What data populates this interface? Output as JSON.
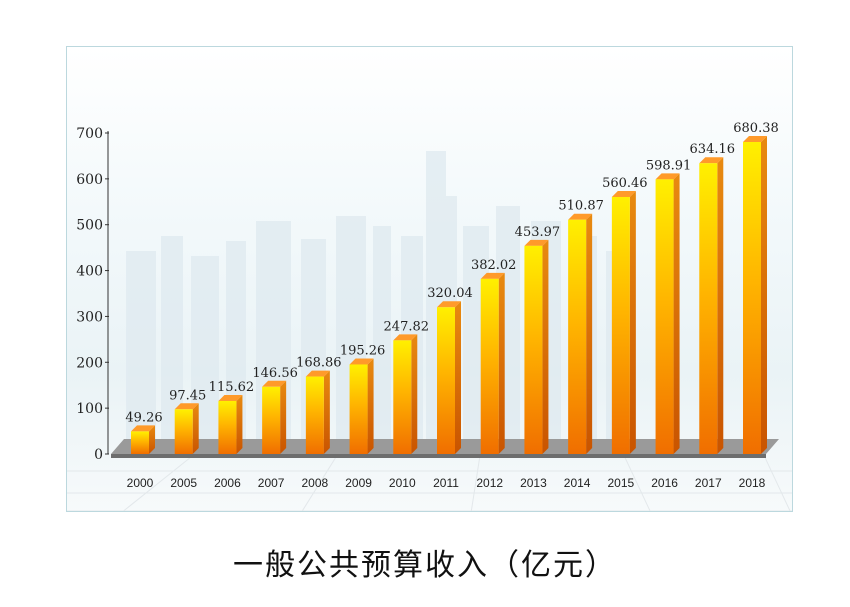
{
  "caption": "一般公共预算收入（亿元）",
  "colors": {
    "bar_top": "#fff000",
    "bar_mid": "#ffb400",
    "bar_bottom": "#f06e00",
    "bar_side": "#c95400",
    "bar_cap": "#ff9a2a",
    "floor": "#6d6d6d",
    "frame": "#bcd8de"
  },
  "chart_data": {
    "type": "bar",
    "title": "",
    "xlabel": "",
    "ylabel": "",
    "ylim": [
      0,
      700
    ],
    "yticks": [
      0,
      100,
      200,
      300,
      400,
      500,
      600,
      700
    ],
    "categories": [
      "2000",
      "2005",
      "2006",
      "2007",
      "2008",
      "2009",
      "2010",
      "2011",
      "2012",
      "2013",
      "2014",
      "2015",
      "2016",
      "2017",
      "2018"
    ],
    "values": [
      49.26,
      97.45,
      115.62,
      146.56,
      168.86,
      195.26,
      247.82,
      320.04,
      382.02,
      453.97,
      510.87,
      560.46,
      598.91,
      634.16,
      680.38
    ],
    "value_labels": [
      "49.26",
      "97.45",
      "115.62",
      "146.56",
      "168.86",
      "195.26",
      "247.82",
      "320.04",
      "382.02",
      "453.97",
      "510.87",
      "560.46",
      "598.91",
      "634.16",
      "680.38"
    ],
    "grid": false,
    "legend": "none"
  }
}
